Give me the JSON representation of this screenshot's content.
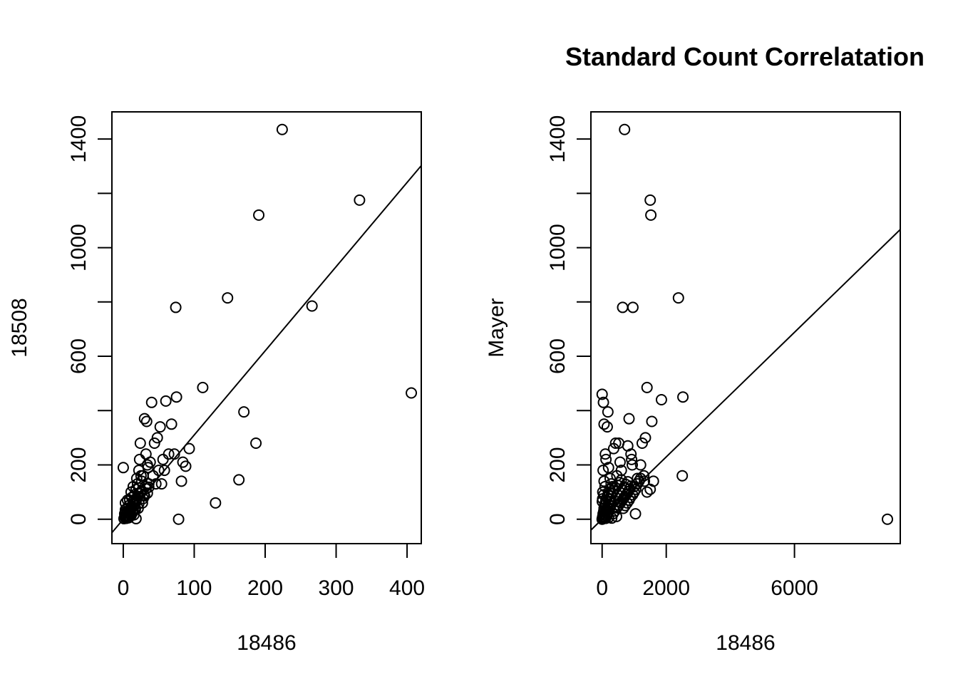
{
  "chart_data": [
    {
      "type": "scatter",
      "title": "",
      "xlabel": "18486",
      "ylabel": "18508",
      "xlim": [
        -16,
        420
      ],
      "ylim": [
        -90,
        1500
      ],
      "xticks": [
        0,
        100,
        200,
        300,
        400
      ],
      "yticks": [
        0,
        200,
        600,
        1000,
        1400
      ],
      "fit_line": {
        "slope": 3.1,
        "intercept": 0
      },
      "points": [
        [
          0,
          190
        ],
        [
          2,
          20
        ],
        [
          3,
          60
        ],
        [
          4,
          10
        ],
        [
          5,
          40
        ],
        [
          6,
          30
        ],
        [
          7,
          5
        ],
        [
          8,
          50
        ],
        [
          9,
          70
        ],
        [
          10,
          25
        ],
        [
          11,
          100
        ],
        [
          12,
          80
        ],
        [
          13,
          45
        ],
        [
          14,
          120
        ],
        [
          15,
          60
        ],
        [
          16,
          90
        ],
        [
          17,
          35
        ],
        [
          18,
          110
        ],
        [
          19,
          150
        ],
        [
          20,
          130
        ],
        [
          21,
          40
        ],
        [
          22,
          180
        ],
        [
          23,
          220
        ],
        [
          24,
          280
        ],
        [
          25,
          100
        ],
        [
          26,
          140
        ],
        [
          27,
          60
        ],
        [
          28,
          160
        ],
        [
          29,
          90
        ],
        [
          30,
          370
        ],
        [
          31,
          120
        ],
        [
          32,
          240
        ],
        [
          33,
          360
        ],
        [
          34,
          200
        ],
        [
          35,
          190
        ],
        [
          36,
          130
        ],
        [
          38,
          210
        ],
        [
          40,
          430
        ],
        [
          42,
          160
        ],
        [
          44,
          280
        ],
        [
          46,
          130
        ],
        [
          48,
          300
        ],
        [
          50,
          180
        ],
        [
          52,
          340
        ],
        [
          54,
          130
        ],
        [
          56,
          220
        ],
        [
          58,
          180
        ],
        [
          60,
          435
        ],
        [
          64,
          240
        ],
        [
          68,
          350
        ],
        [
          72,
          240
        ],
        [
          74,
          780
        ],
        [
          75,
          450
        ],
        [
          78,
          0
        ],
        [
          82,
          140
        ],
        [
          84,
          210
        ],
        [
          88,
          195
        ],
        [
          93,
          260
        ],
        [
          112,
          485
        ],
        [
          130,
          60
        ],
        [
          147,
          815
        ],
        [
          163,
          145
        ],
        [
          170,
          395
        ],
        [
          187,
          280
        ],
        [
          191,
          1120
        ],
        [
          224,
          1435
        ],
        [
          266,
          785
        ],
        [
          333,
          1175
        ],
        [
          406,
          465
        ],
        [
          1,
          2
        ],
        [
          2,
          8
        ],
        [
          3,
          15
        ],
        [
          4,
          3
        ],
        [
          5,
          22
        ],
        [
          6,
          12
        ],
        [
          7,
          28
        ],
        [
          8,
          6
        ],
        [
          9,
          18
        ],
        [
          10,
          38
        ],
        [
          11,
          14
        ],
        [
          12,
          48
        ],
        [
          13,
          24
        ],
        [
          14,
          32
        ],
        [
          15,
          16
        ],
        [
          16,
          54
        ],
        [
          17,
          42
        ],
        [
          18,
          66
        ],
        [
          19,
          74
        ],
        [
          20,
          84
        ],
        [
          22,
          58
        ],
        [
          24,
          94
        ],
        [
          26,
          104
        ],
        [
          28,
          76
        ],
        [
          30,
          86
        ],
        [
          32,
          112
        ],
        [
          34,
          96
        ],
        [
          36,
          118
        ],
        [
          18,
          2
        ],
        [
          6,
          70
        ],
        [
          25,
          160
        ],
        [
          22,
          115
        ],
        [
          14,
          65
        ],
        [
          9,
          30
        ],
        [
          3,
          35
        ]
      ]
    },
    {
      "type": "scatter",
      "title": "Standard Count Correlatation",
      "xlabel": "18486",
      "ylabel": "Mayer",
      "xlim": [
        -350,
        9300
      ],
      "ylim": [
        -90,
        1500
      ],
      "xticks": [
        0,
        2000,
        6000
      ],
      "yticks": [
        0,
        200,
        600,
        1000,
        1400
      ],
      "fit_line": {
        "slope": 0.1147,
        "intercept": 0
      },
      "points": [
        [
          0,
          460
        ],
        [
          40,
          430
        ],
        [
          60,
          350
        ],
        [
          100,
          240
        ],
        [
          120,
          220
        ],
        [
          160,
          340
        ],
        [
          180,
          395
        ],
        [
          200,
          190
        ],
        [
          250,
          150
        ],
        [
          280,
          130
        ],
        [
          320,
          120
        ],
        [
          360,
          260
        ],
        [
          420,
          280
        ],
        [
          460,
          160
        ],
        [
          520,
          280
        ],
        [
          560,
          210
        ],
        [
          600,
          180
        ],
        [
          640,
          780
        ],
        [
          700,
          1435
        ],
        [
          800,
          270
        ],
        [
          840,
          370
        ],
        [
          900,
          240
        ],
        [
          920,
          220
        ],
        [
          940,
          200
        ],
        [
          960,
          780
        ],
        [
          1000,
          120
        ],
        [
          1040,
          20
        ],
        [
          1100,
          150
        ],
        [
          1200,
          200
        ],
        [
          1250,
          280
        ],
        [
          1320,
          140
        ],
        [
          1350,
          300
        ],
        [
          1400,
          485
        ],
        [
          1500,
          1175
        ],
        [
          1520,
          1120
        ],
        [
          1550,
          360
        ],
        [
          1600,
          140
        ],
        [
          1850,
          440
        ],
        [
          2380,
          815
        ],
        [
          2500,
          160
        ],
        [
          2520,
          450
        ],
        [
          8900,
          0
        ],
        [
          0,
          0
        ],
        [
          10,
          5
        ],
        [
          20,
          10
        ],
        [
          30,
          20
        ],
        [
          40,
          2
        ],
        [
          50,
          30
        ],
        [
          60,
          40
        ],
        [
          70,
          15
        ],
        [
          80,
          50
        ],
        [
          90,
          8
        ],
        [
          100,
          60
        ],
        [
          110,
          25
        ],
        [
          120,
          70
        ],
        [
          130,
          35
        ],
        [
          140,
          12
        ],
        [
          150,
          80
        ],
        [
          160,
          45
        ],
        [
          170,
          18
        ],
        [
          180,
          90
        ],
        [
          190,
          55
        ],
        [
          200,
          28
        ],
        [
          210,
          100
        ],
        [
          220,
          65
        ],
        [
          230,
          38
        ],
        [
          240,
          110
        ],
        [
          250,
          75
        ],
        [
          260,
          48
        ],
        [
          280,
          85
        ],
        [
          300,
          58
        ],
        [
          320,
          95
        ],
        [
          340,
          20
        ],
        [
          360,
          105
        ],
        [
          380,
          68
        ],
        [
          400,
          30
        ],
        [
          420,
          115
        ],
        [
          440,
          78
        ],
        [
          460,
          42
        ],
        [
          480,
          125
        ],
        [
          500,
          88
        ],
        [
          520,
          52
        ],
        [
          540,
          135
        ],
        [
          560,
          98
        ],
        [
          580,
          62
        ],
        [
          600,
          145
        ],
        [
          620,
          108
        ],
        [
          640,
          72
        ],
        [
          660,
          40
        ],
        [
          680,
          118
        ],
        [
          700,
          82
        ],
        [
          720,
          50
        ],
        [
          740,
          128
        ],
        [
          760,
          92
        ],
        [
          780,
          60
        ],
        [
          800,
          138
        ],
        [
          820,
          102
        ],
        [
          840,
          70
        ],
        [
          860,
          112
        ],
        [
          880,
          80
        ],
        [
          900,
          122
        ],
        [
          950,
          90
        ],
        [
          1000,
          100
        ],
        [
          1050,
          110
        ],
        [
          1100,
          130
        ],
        [
          1150,
          140
        ],
        [
          1200,
          150
        ],
        [
          1300,
          160
        ],
        [
          1400,
          100
        ],
        [
          1500,
          110
        ],
        [
          30,
          180
        ],
        [
          60,
          140
        ],
        [
          90,
          120
        ],
        [
          20,
          100
        ],
        [
          50,
          90
        ],
        [
          15,
          75
        ],
        [
          5,
          65
        ],
        [
          70,
          5
        ],
        [
          110,
          3
        ],
        [
          200,
          6
        ],
        [
          300,
          4
        ],
        [
          450,
          10
        ]
      ]
    }
  ]
}
